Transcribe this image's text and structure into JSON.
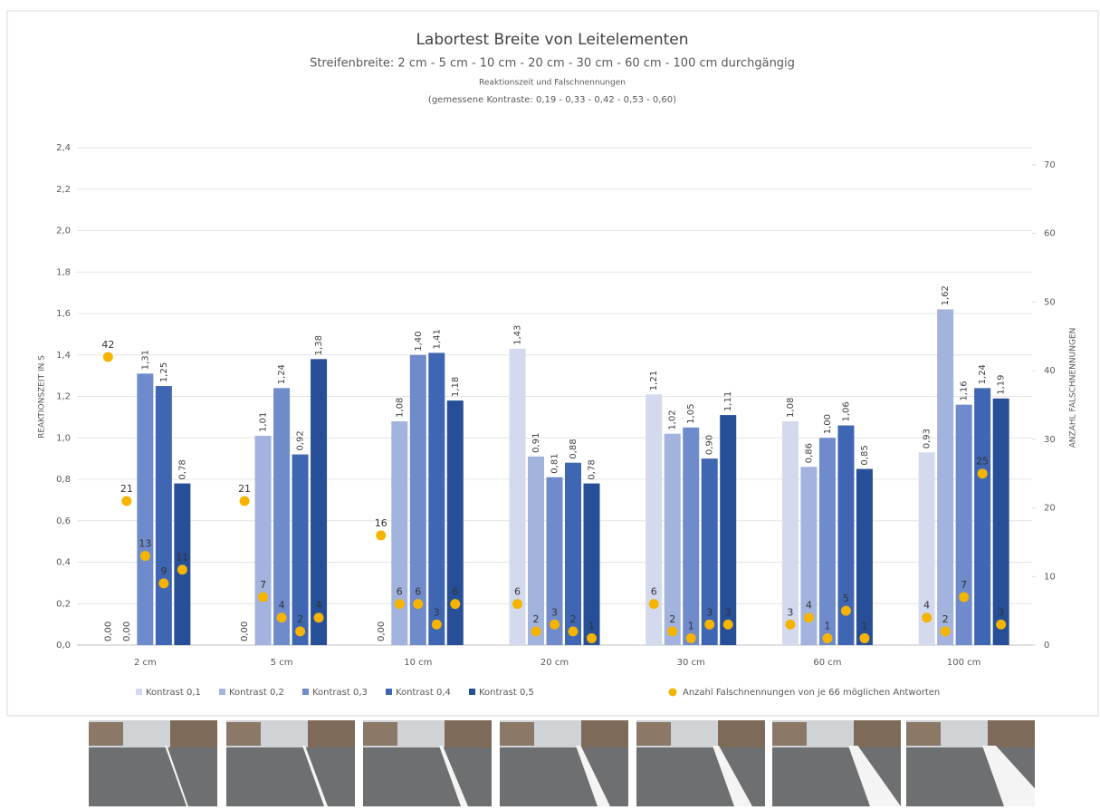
{
  "chart_data": {
    "type": "bar",
    "title": "Labortest Breite von Leitelementen",
    "subtitle": "Streifenbreite: 2 cm - 5 cm - 10 cm - 20 cm - 30 cm - 60 cm - 100 cm durchgängig",
    "subtitle2": "Reaktionszeit und Falschnennungen",
    "subtitle3": "(gemessene Kontraste:  0,19 - 0,33 -  0,42 - 0,53 - 0,60)",
    "ylabel": "REAKTIONSZEIT IN S",
    "y2label": "ANZAHL FALSCHNENNUNGEN",
    "categories": [
      "2 cm",
      "5 cm",
      "10 cm",
      "20 cm",
      "30 cm",
      "60 cm",
      "100 cm"
    ],
    "series": [
      {
        "name": "Kontrast 0,1",
        "color": "#d3daee",
        "values": [
          0,
          0,
          0,
          1.43,
          1.21,
          1.08,
          0.93
        ],
        "value_labels": [
          "0,00",
          "0,00",
          "0,00",
          "1,43",
          "1,21",
          "1,08",
          "0,93"
        ]
      },
      {
        "name": "Kontrast 0,2",
        "color": "#a2b3dd",
        "values": [
          0,
          1.01,
          1.08,
          0.91,
          1.02,
          0.86,
          1.62
        ],
        "value_labels": [
          "0,00",
          "1,01",
          "1,08",
          "0,91",
          "1,02",
          "0,86",
          "1,62"
        ]
      },
      {
        "name": "Kontrast 0,3",
        "color": "#6f8bcb",
        "values": [
          1.31,
          1.24,
          1.4,
          0.81,
          1.05,
          1.0,
          1.16
        ],
        "value_labels": [
          "1,31",
          "1,24",
          "1,40",
          "0,81",
          "1,05",
          "1,00",
          "1,16"
        ]
      },
      {
        "name": "Kontrast 0,4",
        "color": "#3f66b2",
        "values": [
          1.25,
          0.92,
          1.41,
          0.88,
          0.9,
          1.06,
          1.24
        ],
        "value_labels": [
          "1,25",
          "0,92",
          "1,41",
          "0,88",
          "0,90",
          "1,06",
          "1,24"
        ]
      },
      {
        "name": "Kontrast 0,5",
        "color": "#264f97",
        "values": [
          0.78,
          1.38,
          1.18,
          0.78,
          1.11,
          0.85,
          1.19
        ],
        "value_labels": [
          "0,78",
          "1,38",
          "1,18",
          "0,78",
          "1,11",
          "0,85",
          "1,19"
        ]
      }
    ],
    "points": {
      "name": "Anzahl Falschnennungen von je 66 möglichen Antworten",
      "color": "#f5b400",
      "axis": "y2",
      "values": [
        [
          42,
          21,
          13,
          9,
          11
        ],
        [
          21,
          7,
          4,
          2,
          4
        ],
        [
          16,
          6,
          6,
          3,
          6
        ],
        [
          6,
          2,
          3,
          2,
          1
        ],
        [
          6,
          2,
          1,
          3,
          3
        ],
        [
          3,
          4,
          1,
          5,
          1
        ],
        [
          4,
          2,
          7,
          25,
          3
        ]
      ]
    },
    "ylim": [
      0,
      2.4
    ],
    "yticks": [
      {
        "value": 0,
        "label": "0,0"
      },
      {
        "value": 0.2,
        "label": "0,2"
      },
      {
        "value": 0.4,
        "label": "0,4"
      },
      {
        "value": 0.6,
        "label": "0,6"
      },
      {
        "value": 0.8,
        "label": "0,8"
      },
      {
        "value": 1.0,
        "label": "1,0"
      },
      {
        "value": 1.2,
        "label": "1,2"
      },
      {
        "value": 1.4,
        "label": "1,4"
      },
      {
        "value": 1.6,
        "label": "1,6"
      },
      {
        "value": 1.8,
        "label": "1,8"
      },
      {
        "value": 2.0,
        "label": "2,0"
      },
      {
        "value": 2.2,
        "label": "2,2"
      },
      {
        "value": 2.4,
        "label": "2,4"
      }
    ],
    "y2lim": [
      0,
      72.5
    ],
    "y2ticks": [
      0,
      10,
      20,
      30,
      40,
      50,
      60,
      70
    ],
    "grid": true
  }
}
